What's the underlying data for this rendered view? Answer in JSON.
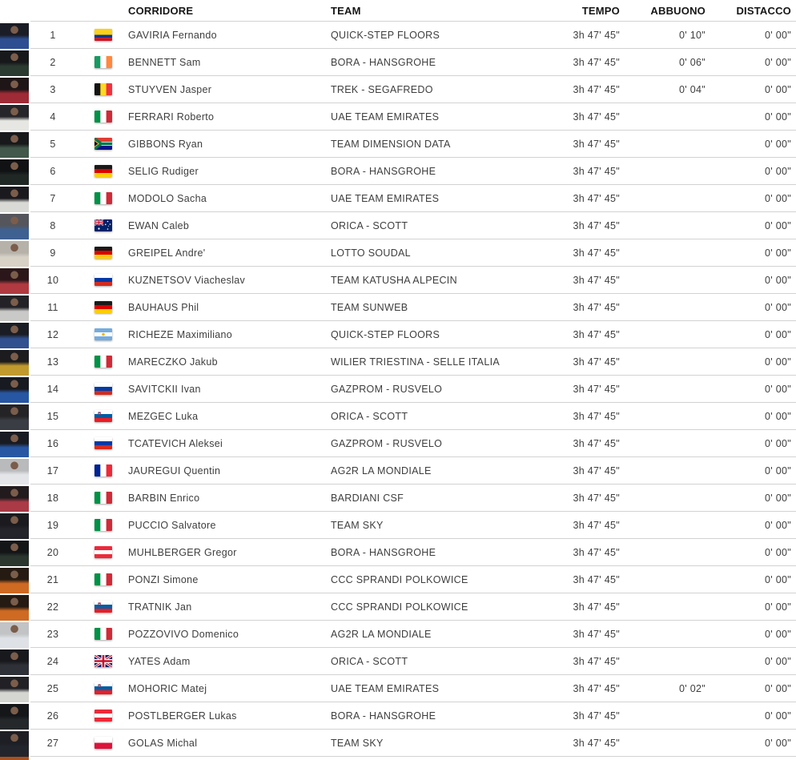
{
  "colors": {
    "separator": "#d2d2d2",
    "header_text": "#161616",
    "row_text": "#3e3e3e",
    "background": "#ffffff"
  },
  "table": {
    "columns": {
      "corridore": "CORRIDORE",
      "team": "TEAM",
      "tempo": "TEMPO",
      "abbuono": "ABBUONO",
      "distacco": "DISTACCO"
    },
    "rows": [
      {
        "pos": "1",
        "flag": "co",
        "country": "Colombia",
        "rider": "GAVIRIA Fernando",
        "team": "QUICK-STEP FLOORS",
        "tempo": "3h 47' 45\"",
        "abbuono": "0' 10\"",
        "distacco": "0' 00\"",
        "avatar": {
          "bg": "#1b1d26",
          "kit": "#2d4f92"
        }
      },
      {
        "pos": "2",
        "flag": "ie",
        "country": "Ireland",
        "rider": "BENNETT Sam",
        "team": "BORA - HANSGROHE",
        "tempo": "3h 47' 45\"",
        "abbuono": "0' 06\"",
        "distacco": "0' 00\"",
        "avatar": {
          "bg": "#16181a",
          "kit": "#2c3b31"
        }
      },
      {
        "pos": "3",
        "flag": "be",
        "country": "Belgium",
        "rider": "STUYVEN Jasper",
        "team": "TREK - SEGAFREDO",
        "tempo": "3h 47' 45\"",
        "abbuono": "0' 04\"",
        "distacco": "0' 00\"",
        "avatar": {
          "bg": "#1e1517",
          "kit": "#9e2b36"
        }
      },
      {
        "pos": "4",
        "flag": "it",
        "country": "Italy",
        "rider": "FERRARI Roberto",
        "team": "UAE TEAM EMIRATES",
        "tempo": "3h 47' 45\"",
        "abbuono": "",
        "distacco": "0' 00\"",
        "avatar": {
          "bg": "#26262a",
          "kit": "#e6e6e2"
        }
      },
      {
        "pos": "5",
        "flag": "za",
        "country": "South Africa",
        "rider": "GIBBONS Ryan",
        "team": "TEAM DIMENSION DATA",
        "tempo": "3h 47' 45\"",
        "abbuono": "",
        "distacco": "0' 00\"",
        "avatar": {
          "bg": "#17191b",
          "kit": "#41584a"
        }
      },
      {
        "pos": "6",
        "flag": "de",
        "country": "Germany",
        "rider": "SELIG Rudiger",
        "team": "BORA - HANSGROHE",
        "tempo": "3h 47' 45\"",
        "abbuono": "",
        "distacco": "0' 00\"",
        "avatar": {
          "bg": "#101214",
          "kit": "#202825"
        }
      },
      {
        "pos": "7",
        "flag": "it",
        "country": "Italy",
        "rider": "MODOLO Sacha",
        "team": "UAE TEAM EMIRATES",
        "tempo": "3h 47' 45\"",
        "abbuono": "",
        "distacco": "0' 00\"",
        "avatar": {
          "bg": "#1a1a1e",
          "kit": "#d9d9d5"
        }
      },
      {
        "pos": "8",
        "flag": "au",
        "country": "Australia",
        "rider": "EWAN Caleb",
        "team": "ORICA - SCOTT",
        "tempo": "3h 47' 45\"",
        "abbuono": "",
        "distacco": "0' 00\"",
        "avatar": {
          "bg": "#55565c",
          "kit": "#3f6191"
        }
      },
      {
        "pos": "9",
        "flag": "de",
        "country": "Germany",
        "rider": "GREIPEL Andre'",
        "team": "LOTTO SOUDAL",
        "tempo": "3h 47' 45\"",
        "abbuono": "",
        "distacco": "0' 00\"",
        "avatar": {
          "bg": "#b6b2aa",
          "kit": "#d7d1c6"
        }
      },
      {
        "pos": "10",
        "flag": "ru",
        "country": "Russia",
        "rider": "KUZNETSOV Viacheslav",
        "team": "TEAM KATUSHA ALPECIN",
        "tempo": "3h 47' 45\"",
        "abbuono": "",
        "distacco": "0' 00\"",
        "avatar": {
          "bg": "#2b171a",
          "kit": "#b03a40"
        }
      },
      {
        "pos": "11",
        "flag": "de",
        "country": "Germany",
        "rider": "BAUHAUS Phil",
        "team": "TEAM SUNWEB",
        "tempo": "3h 47' 45\"",
        "abbuono": "",
        "distacco": "0' 00\"",
        "avatar": {
          "bg": "#232327",
          "kit": "#c9c9c7"
        }
      },
      {
        "pos": "12",
        "flag": "ar",
        "country": "Argentina",
        "rider": "RICHEZE Maximiliano",
        "team": "QUICK-STEP FLOORS",
        "tempo": "3h 47' 45\"",
        "abbuono": "",
        "distacco": "0' 00\"",
        "avatar": {
          "bg": "#1a1d24",
          "kit": "#30508f"
        }
      },
      {
        "pos": "13",
        "flag": "it",
        "country": "Italy",
        "rider": "MARECZKO Jakub",
        "team": "WILIER TRIESTINA - SELLE ITALIA",
        "tempo": "3h 47' 45\"",
        "abbuono": "",
        "distacco": "0' 00\"",
        "avatar": {
          "bg": "#1c1c1e",
          "kit": "#c19a2e"
        }
      },
      {
        "pos": "14",
        "flag": "ru",
        "country": "Russia",
        "rider": "SAVITCKII Ivan",
        "team": "GAZPROM - RUSVELO",
        "tempo": "3h 47' 45\"",
        "abbuono": "",
        "distacco": "0' 00\"",
        "avatar": {
          "bg": "#171a20",
          "kit": "#2757a3"
        }
      },
      {
        "pos": "15",
        "flag": "si",
        "country": "Slovenia",
        "rider": "MEZGEC Luka",
        "team": "ORICA - SCOTT",
        "tempo": "3h 47' 45\"",
        "abbuono": "",
        "distacco": "0' 00\"",
        "avatar": {
          "bg": "#242426",
          "kit": "#3b3d44"
        }
      },
      {
        "pos": "16",
        "flag": "ru",
        "country": "Russia",
        "rider": "TCATEVICH Aleksei",
        "team": "GAZPROM - RUSVELO",
        "tempo": "3h 47' 45\"",
        "abbuono": "",
        "distacco": "0' 00\"",
        "avatar": {
          "bg": "#181b21",
          "kit": "#2757a3"
        }
      },
      {
        "pos": "17",
        "flag": "fr",
        "country": "France",
        "rider": "JAUREGUI Quentin",
        "team": "AG2R LA MONDIALE",
        "tempo": "3h 47' 45\"",
        "abbuono": "",
        "distacco": "0' 00\"",
        "avatar": {
          "bg": "#b9babc",
          "kit": "#e3e5e8"
        }
      },
      {
        "pos": "18",
        "flag": "it",
        "country": "Italy",
        "rider": "BARBIN Enrico",
        "team": "BARDIANI CSF",
        "tempo": "3h 47' 45\"",
        "abbuono": "",
        "distacco": "0' 00\"",
        "avatar": {
          "bg": "#221b1d",
          "kit": "#a93a46"
        }
      },
      {
        "pos": "19",
        "flag": "it",
        "country": "Italy",
        "rider": "PUCCIO Salvatore",
        "team": "TEAM SKY",
        "tempo": "3h 47' 45\"",
        "abbuono": "",
        "distacco": "0' 00\"",
        "avatar": {
          "bg": "#1b1b1f",
          "kit": "#24252b"
        }
      },
      {
        "pos": "20",
        "flag": "at",
        "country": "Austria",
        "rider": "MUHLBERGER Gregor",
        "team": "BORA - HANSGROHE",
        "tempo": "3h 47' 45\"",
        "abbuono": "",
        "distacco": "0' 00\"",
        "avatar": {
          "bg": "#131517",
          "kit": "#2a362e"
        }
      },
      {
        "pos": "21",
        "flag": "it",
        "country": "Italy",
        "rider": "PONZI Simone",
        "team": "CCC SPRANDI POLKOWICE",
        "tempo": "3h 47' 45\"",
        "abbuono": "",
        "distacco": "0' 00\"",
        "avatar": {
          "bg": "#251b13",
          "kit": "#cf6a22"
        }
      },
      {
        "pos": "22",
        "flag": "si",
        "country": "Slovenia",
        "rider": "TRATNIK Jan",
        "team": "CCC SPRANDI POLKOWICE",
        "tempo": "3h 47' 45\"",
        "abbuono": "",
        "distacco": "0' 00\"",
        "avatar": {
          "bg": "#251b13",
          "kit": "#cf6a22"
        }
      },
      {
        "pos": "23",
        "flag": "it",
        "country": "Italy",
        "rider": "POZZOVIVO Domenico",
        "team": "AG2R LA MONDIALE",
        "tempo": "3h 47' 45\"",
        "abbuono": "",
        "distacco": "0' 00\"",
        "avatar": {
          "bg": "#c1c3c5",
          "kit": "#dee1e5"
        }
      },
      {
        "pos": "24",
        "flag": "gb",
        "country": "United Kingdom",
        "rider": "YATES Adam",
        "team": "ORICA - SCOTT",
        "tempo": "3h 47' 45\"",
        "abbuono": "",
        "distacco": "0' 00\"",
        "avatar": {
          "bg": "#18191d",
          "kit": "#2f3138"
        }
      },
      {
        "pos": "25",
        "flag": "si",
        "country": "Slovenia",
        "rider": "MOHORIC Matej",
        "team": "UAE TEAM EMIRATES",
        "tempo": "3h 47' 45\"",
        "abbuono": "0' 02\"",
        "distacco": "0' 00\"",
        "avatar": {
          "bg": "#212125",
          "kit": "#d5d5d1"
        }
      },
      {
        "pos": "26",
        "flag": "at",
        "country": "Austria",
        "rider": "POSTLBERGER Lukas",
        "team": "BORA - HANSGROHE",
        "tempo": "3h 47' 45\"",
        "abbuono": "",
        "distacco": "0' 00\"",
        "avatar": {
          "bg": "#141618",
          "kit": "#24282a"
        }
      },
      {
        "pos": "27",
        "flag": "pl",
        "country": "Poland",
        "rider": "GOLAS Michal",
        "team": "TEAM SKY",
        "tempo": "3h 47' 45\"",
        "abbuono": "",
        "distacco": "0' 00\"",
        "avatar": {
          "bg": "#1d1f25",
          "kit": "#23252d"
        }
      }
    ],
    "partial_row": {
      "avatar": {
        "bg": "#a8511f"
      }
    }
  }
}
